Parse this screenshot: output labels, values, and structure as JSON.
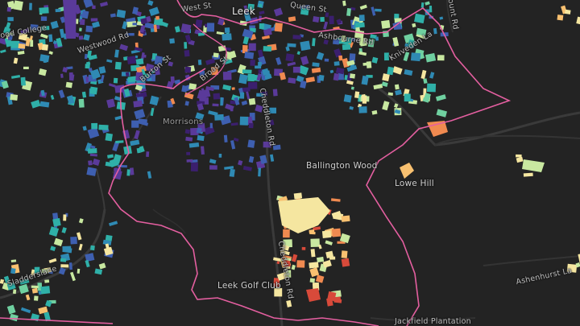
{
  "map": {
    "labels": {
      "leek": "Leek",
      "queen_st": "Queen St",
      "ashbourne_rd": "Ashbourne Rd",
      "westwood_rd": "Westwood Rd",
      "burton_st": "Burton St",
      "broad_st": "Broad St",
      "morrisons": "Morrisons",
      "cheddleton_rd": "Cheddleton Rd",
      "ballington_wood": "Ballington Wood",
      "lowe_hill": "Lowe Hill",
      "leek_golf_club": "Leek Golf Club",
      "cheddleton_rd_south": "Cheddleton Rd",
      "ashenhurst_la": "Ashenhurst La",
      "jacksfield_plantation": "Jackfield Plantation",
      "westwood_college": "ood College",
      "haddersley": "Sladderslane",
      "kniveden_la": "Kniveden La",
      "mount_rd": "Mount Rd",
      "west_st": "West St"
    },
    "colors": {
      "background": "#232323",
      "boundary": "#e45fa0",
      "road": "#3c3c3c",
      "palette": [
        "#3b1f6e",
        "#5a3a9a",
        "#3e5fb0",
        "#2f8ab4",
        "#2fb0a8",
        "#6fd0a0",
        "#c8e8a0",
        "#f5e6a0",
        "#f8c070",
        "#f08a50",
        "#d84a3a"
      ]
    }
  }
}
